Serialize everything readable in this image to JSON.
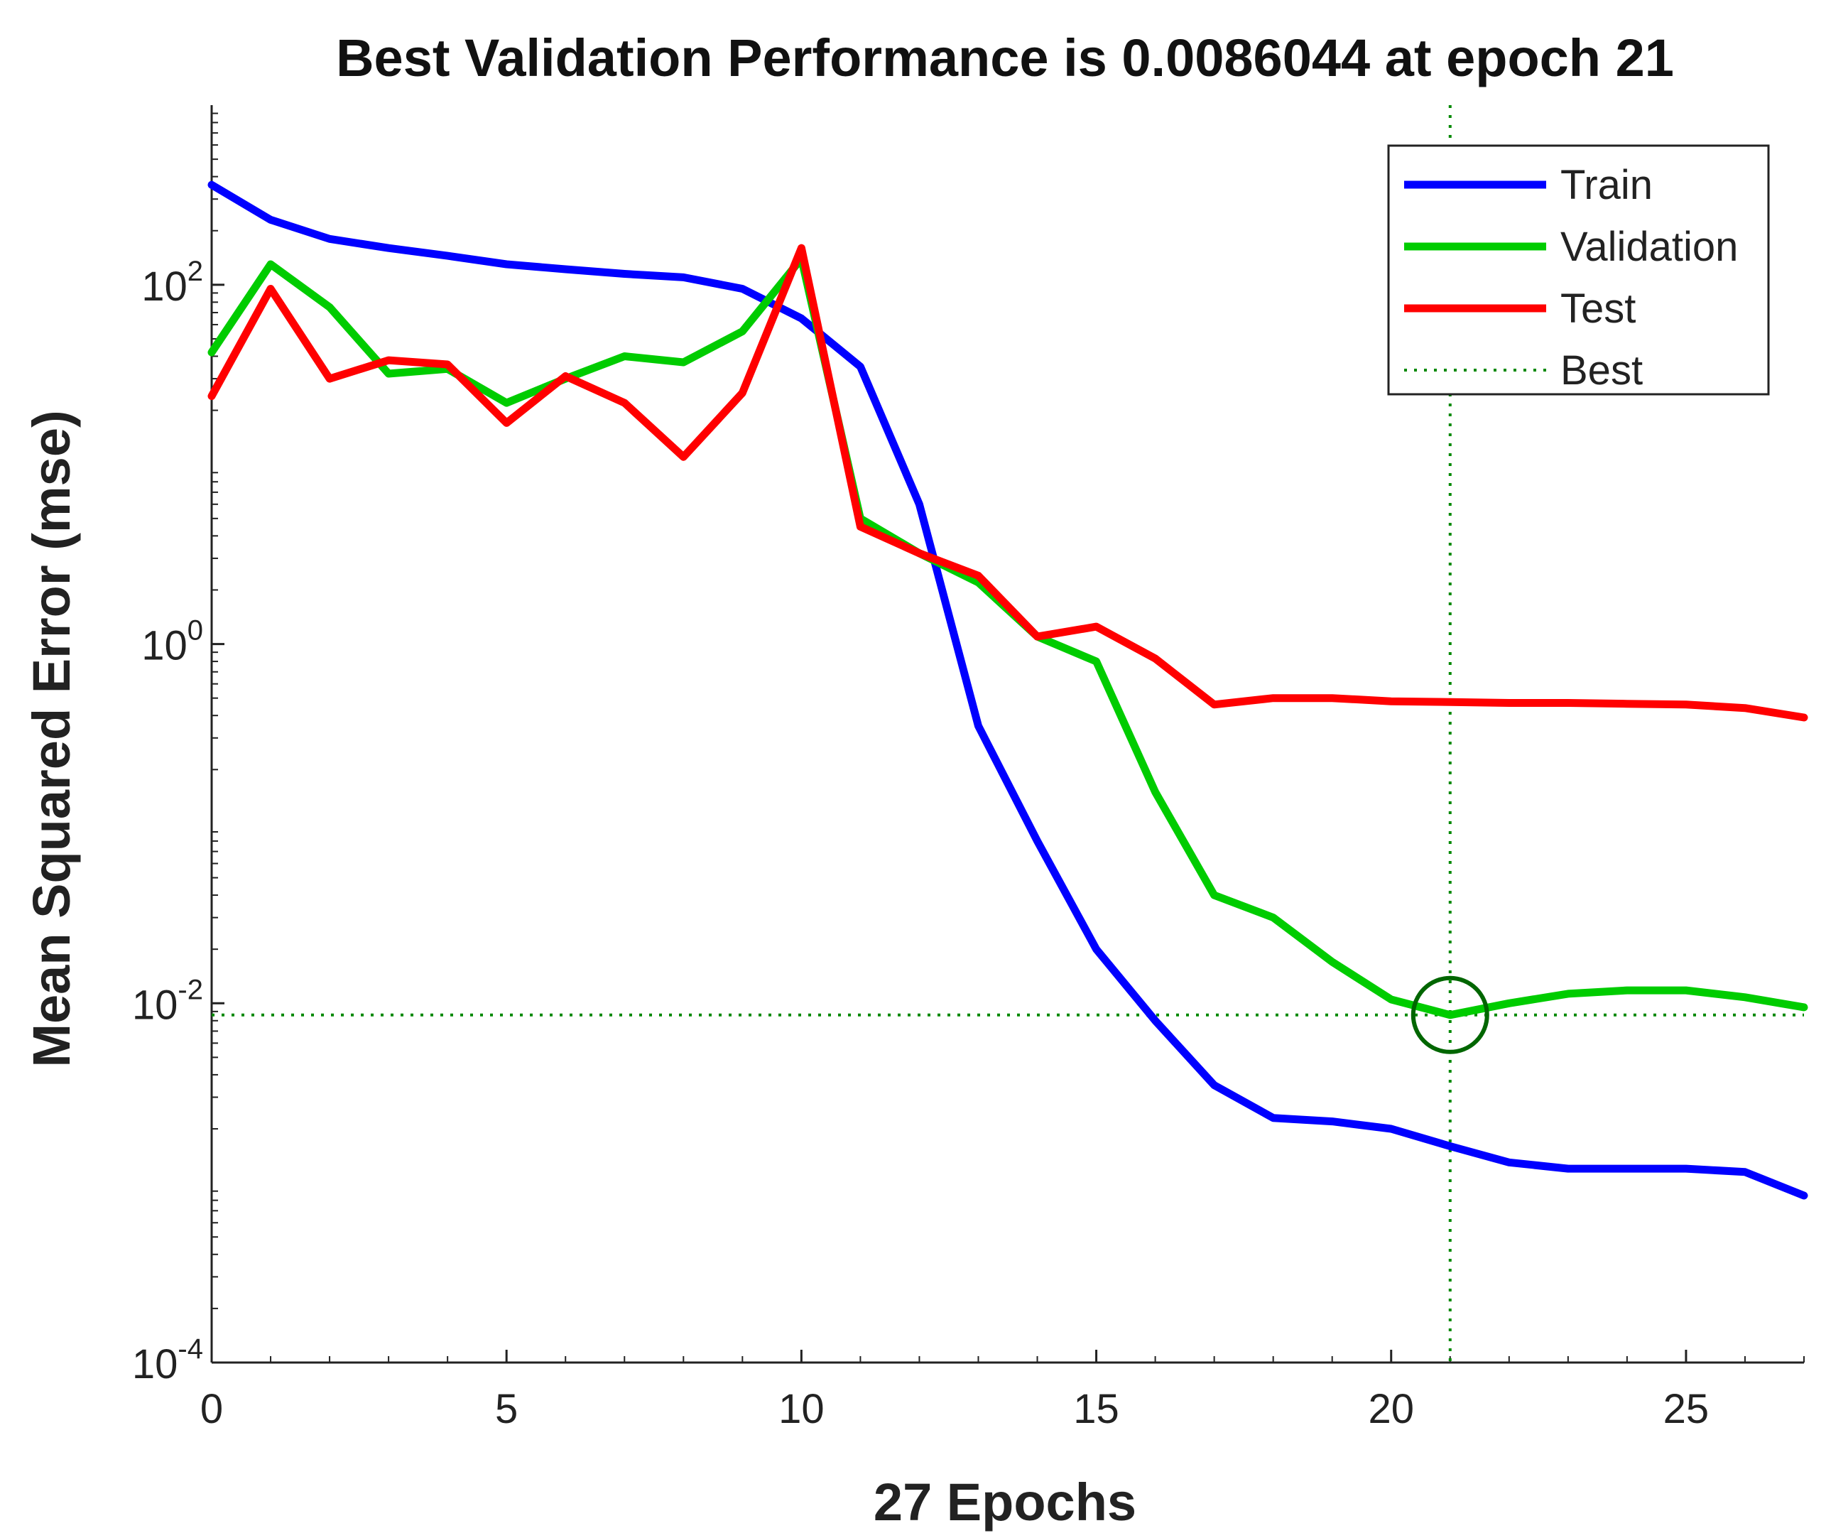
{
  "chart_data": {
    "type": "line",
    "title": "Best Validation Performance is 0.0086044 at epoch 21",
    "xlabel": "27 Epochs",
    "ylabel": "Mean Squared Error  (mse)",
    "yscale": "log",
    "xlim": [
      0,
      27
    ],
    "ylim": [
      0.0001,
      1000
    ],
    "x_ticks": [
      0,
      5,
      10,
      15,
      20,
      25
    ],
    "x_tick_labels": [
      "0",
      "5",
      "10",
      "15",
      "20",
      "25"
    ],
    "y_ticks": [
      0.0001,
      0.01,
      1,
      100
    ],
    "y_tick_labels": [
      {
        "base": "10",
        "exp": "-4"
      },
      {
        "base": "10",
        "exp": "-2"
      },
      {
        "base": "10",
        "exp": "0"
      },
      {
        "base": "10",
        "exp": "2"
      }
    ],
    "x": [
      0,
      1,
      2,
      3,
      4,
      5,
      6,
      7,
      8,
      9,
      10,
      11,
      12,
      13,
      14,
      15,
      16,
      17,
      18,
      19,
      20,
      21,
      22,
      23,
      24,
      25,
      26,
      27
    ],
    "series": [
      {
        "name": "Train",
        "color": "#0000ff",
        "style": "solid",
        "values": [
          360,
          230,
          180,
          160,
          145,
          130,
          122,
          115,
          110,
          95,
          65,
          35,
          6,
          0.35,
          0.08,
          0.02,
          0.008,
          0.0035,
          0.0023,
          0.0022,
          0.002,
          0.0016,
          0.0013,
          0.0012,
          0.0012,
          0.0012,
          0.00115,
          0.00085
        ]
      },
      {
        "name": "Validation",
        "color": "#00cc00",
        "style": "solid",
        "values": [
          42,
          130,
          75,
          32,
          34,
          22,
          30,
          40,
          37,
          55,
          140,
          5,
          3.2,
          2.2,
          1.1,
          0.8,
          0.15,
          0.04,
          0.03,
          0.017,
          0.0105,
          0.0086044,
          0.01,
          0.0113,
          0.0118,
          0.0118,
          0.0108,
          0.0095
        ]
      },
      {
        "name": "Test",
        "color": "#ff0000",
        "style": "solid",
        "values": [
          24,
          95,
          30,
          38,
          36,
          17,
          31,
          22,
          11,
          25,
          160,
          4.5,
          3.2,
          2.4,
          1.1,
          1.25,
          0.83,
          0.46,
          0.5,
          0.5,
          0.48,
          0.475,
          0.47,
          0.47,
          0.465,
          0.46,
          0.44,
          0.39
        ]
      }
    ],
    "best": {
      "label": "Best",
      "epoch": 21,
      "value": 0.0086044,
      "color": "#008800",
      "style": "dotted",
      "marker": "circle"
    },
    "legend": {
      "position": "top-right",
      "entries": [
        "Train",
        "Validation",
        "Test",
        "Best"
      ]
    },
    "grid": false
  }
}
